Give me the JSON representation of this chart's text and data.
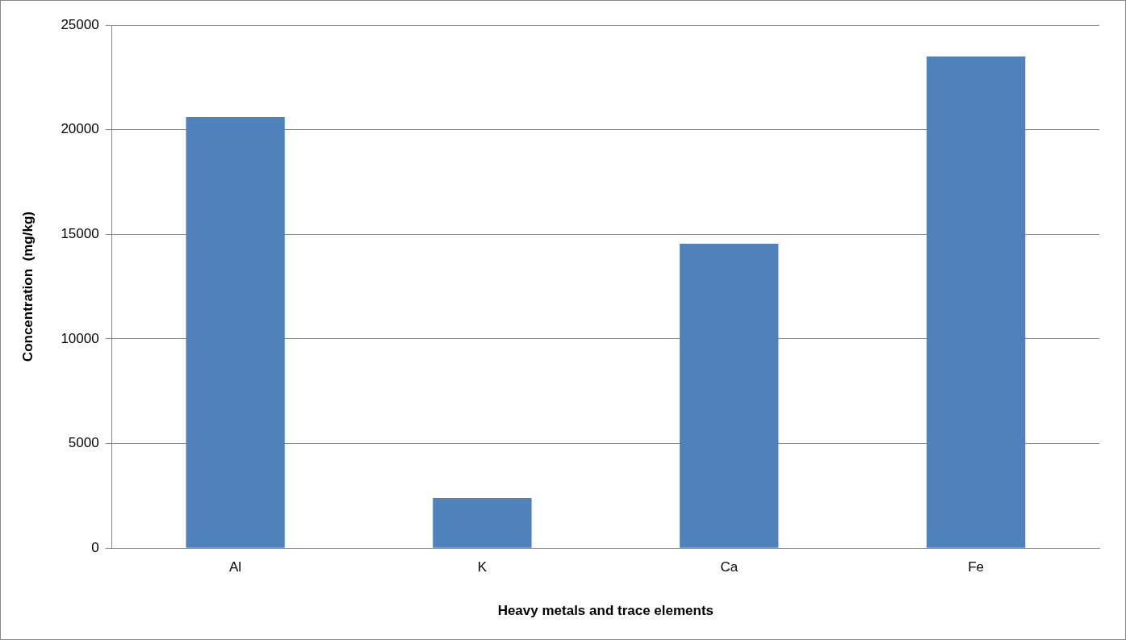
{
  "chart_data": {
    "type": "bar",
    "xlabel": "Heavy metals and trace elements",
    "ylabel": "Concentration  (mg/kg)",
    "categories": [
      "Al",
      "K",
      "Ca",
      "Fe"
    ],
    "values": [
      20600,
      2400,
      14550,
      23500
    ],
    "color": "#4f81bd",
    "ylim": [
      0,
      25000
    ],
    "yticks": [
      0,
      5000,
      10000,
      15000,
      20000,
      25000
    ],
    "grid": "y"
  }
}
